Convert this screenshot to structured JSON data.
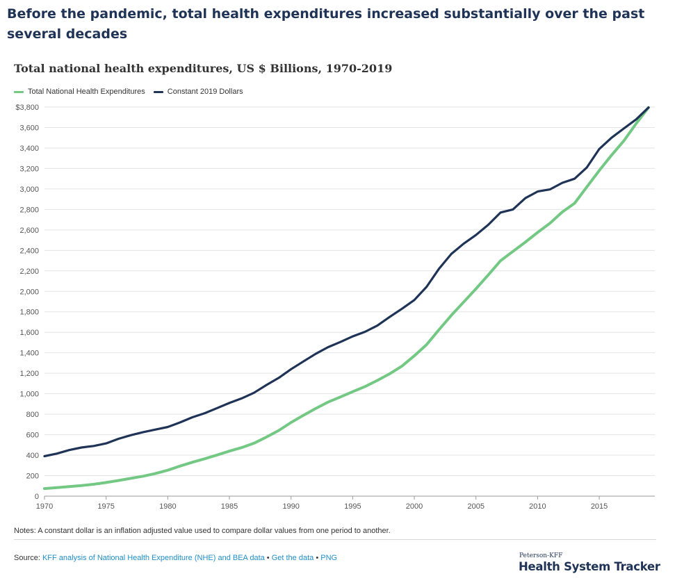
{
  "headline": "Before the pandemic, total health expenditures increased substantially over the past several decades",
  "notes": "Notes: A constant dollar is an inflation adjusted value used to compare dollar values from one period to another.",
  "source": {
    "prefix": "Source: ",
    "link1": "KFF analysis of National Health Expenditure (NHE) and BEA data",
    "sep1": " • ",
    "link2": "Get the data",
    "sep2": " • ",
    "link3": "PNG"
  },
  "branding": {
    "small": "Peterson-KFF",
    "big": "Health System Tracker"
  },
  "colors": {
    "total": "#73c883",
    "constant": "#1f3356",
    "grid": "#e3e3e3",
    "axis": "#9a9a9a"
  },
  "chart_data": {
    "type": "line",
    "title": "Total national health expenditures, US $ Billions, 1970-2019",
    "xlim": [
      1970,
      2019
    ],
    "ylim": [
      0,
      3800
    ],
    "xticks": [
      1970,
      1975,
      1980,
      1985,
      1990,
      1995,
      2000,
      2005,
      2010,
      2015
    ],
    "yticks": [
      0,
      200,
      400,
      600,
      800,
      1000,
      1200,
      1400,
      1600,
      1800,
      2000,
      2200,
      2400,
      2600,
      2800,
      3000,
      3200,
      3400,
      3600,
      3800
    ],
    "ytick_labels": [
      "0",
      "200",
      "400",
      "600",
      "800",
      "1,000",
      "1,200",
      "1,400",
      "1,600",
      "1,800",
      "2,000",
      "2,200",
      "2,400",
      "2,600",
      "2,800",
      "3,000",
      "3,200",
      "3,400",
      "3,600",
      "$3,800"
    ],
    "grid": true,
    "legend": "top-left",
    "x": [
      1970,
      1971,
      1972,
      1973,
      1974,
      1975,
      1976,
      1977,
      1978,
      1979,
      1980,
      1981,
      1982,
      1983,
      1984,
      1985,
      1986,
      1987,
      1988,
      1989,
      1990,
      1991,
      1992,
      1993,
      1994,
      1995,
      1996,
      1997,
      1998,
      1999,
      2000,
      2001,
      2002,
      2003,
      2004,
      2005,
      2006,
      2007,
      2008,
      2009,
      2010,
      2011,
      2012,
      2013,
      2014,
      2015,
      2016,
      2017,
      2018,
      2019
    ],
    "series": [
      {
        "name": "Total National Health Expenditures",
        "values": [
          74,
          83,
          93,
          103,
          116,
          133,
          153,
          174,
          195,
          221,
          253,
          294,
          331,
          365,
          402,
          440,
          474,
          517,
          577,
          641,
          719,
          789,
          856,
          918,
          968,
          1020,
          1070,
          1130,
          1195,
          1270,
          1370,
          1480,
          1625,
          1765,
          1895,
          2025,
          2160,
          2300,
          2390,
          2480,
          2575,
          2665,
          2775,
          2860,
          3020,
          3180,
          3330,
          3470,
          3640,
          3795
        ]
      },
      {
        "name": "Constant 2019 Dollars",
        "values": [
          390,
          415,
          450,
          475,
          490,
          515,
          560,
          595,
          625,
          650,
          675,
          720,
          770,
          810,
          860,
          910,
          955,
          1010,
          1085,
          1155,
          1240,
          1315,
          1390,
          1455,
          1505,
          1560,
          1605,
          1665,
          1750,
          1830,
          1915,
          2045,
          2220,
          2365,
          2465,
          2550,
          2650,
          2770,
          2800,
          2910,
          2975,
          2995,
          3060,
          3100,
          3210,
          3390,
          3500,
          3590,
          3680,
          3795
        ]
      }
    ]
  }
}
